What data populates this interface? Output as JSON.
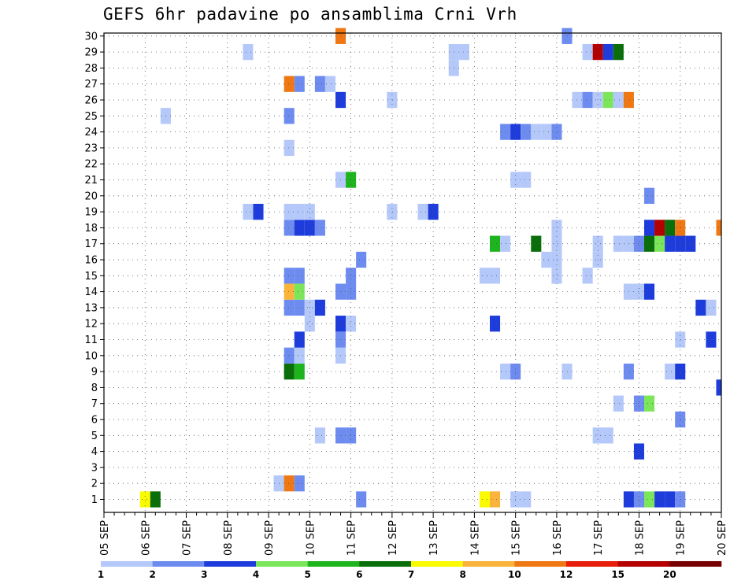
{
  "chart_data": {
    "type": "heatmap",
    "title": "GEFS 6hr padavine po ansamblima Crni Vrh",
    "xlabel": "",
    "ylabel": "",
    "x_tick_labels": [
      "05 SEP",
      "06 SEP",
      "07 SEP",
      "08 SEP",
      "09 SEP",
      "10 SEP",
      "11 SEP",
      "12 SEP",
      "13 SEP",
      "14 SEP",
      "15 SEP",
      "16 SEP",
      "17 SEP",
      "18 SEP",
      "19 SEP",
      "20 SEP"
    ],
    "y_tick_labels": [
      "1",
      "2",
      "3",
      "4",
      "5",
      "6",
      "7",
      "8",
      "9",
      "10",
      "11",
      "12",
      "13",
      "14",
      "15",
      "16",
      "17",
      "18",
      "19",
      "20",
      "21",
      "22",
      "23",
      "24",
      "25",
      "26",
      "27",
      "28",
      "29",
      "30"
    ],
    "x_step_unit": "6hr",
    "steps_per_day": 4,
    "num_steps": 61,
    "num_members": 30,
    "grid": true,
    "colorbar": {
      "position": "bottom",
      "boundaries": [
        "1",
        "2",
        "3",
        "4",
        "5",
        "6",
        "7",
        "8",
        "10",
        "12",
        "15",
        "20"
      ],
      "colors": [
        "#b4c8fa",
        "#6e8cf0",
        "#1e3cdc",
        "#7ce65a",
        "#1eb41e",
        "#0a6e0a",
        "#fafa00",
        "#fab43c",
        "#f07814",
        "#e61e0a",
        "#b40000",
        "#780000"
      ]
    },
    "cells": [
      [
        1,
        4,
        7
      ],
      [
        1,
        5,
        6
      ],
      [
        1,
        54,
        3
      ],
      [
        1,
        53,
        4
      ],
      [
        1,
        40,
        1
      ],
      [
        1,
        41,
        1
      ],
      [
        1,
        37,
        7
      ],
      [
        1,
        38,
        8
      ],
      [
        1,
        25,
        2
      ],
      [
        1,
        52,
        2
      ],
      [
        1,
        51,
        3
      ],
      [
        1,
        55,
        3
      ],
      [
        1,
        56,
        2
      ],
      [
        2,
        17,
        1
      ],
      [
        2,
        18,
        10
      ],
      [
        2,
        19,
        2
      ],
      [
        4,
        52,
        3
      ],
      [
        5,
        21,
        1
      ],
      [
        5,
        23,
        2
      ],
      [
        5,
        24,
        2
      ],
      [
        5,
        48,
        1
      ],
      [
        5,
        49,
        1
      ],
      [
        6,
        56,
        2
      ],
      [
        7,
        50,
        1
      ],
      [
        7,
        52,
        2
      ],
      [
        7,
        53,
        4
      ],
      [
        8,
        60,
        3
      ],
      [
        9,
        18,
        6
      ],
      [
        9,
        19,
        5
      ],
      [
        9,
        39,
        1
      ],
      [
        9,
        40,
        2
      ],
      [
        9,
        45,
        1
      ],
      [
        9,
        51,
        2
      ],
      [
        9,
        55,
        1
      ],
      [
        9,
        56,
        3
      ],
      [
        10,
        18,
        2
      ],
      [
        10,
        19,
        1
      ],
      [
        10,
        23,
        1
      ],
      [
        11,
        19,
        3
      ],
      [
        11,
        23,
        2
      ],
      [
        11,
        56,
        1
      ],
      [
        11,
        59,
        3
      ],
      [
        12,
        20,
        1
      ],
      [
        12,
        23,
        3
      ],
      [
        12,
        24,
        1
      ],
      [
        12,
        38,
        3
      ],
      [
        13,
        18,
        2
      ],
      [
        13,
        19,
        2
      ],
      [
        13,
        20,
        1
      ],
      [
        13,
        21,
        3
      ],
      [
        13,
        58,
        3
      ],
      [
        13,
        59,
        1
      ],
      [
        14,
        18,
        9
      ],
      [
        14,
        19,
        4
      ],
      [
        14,
        23,
        2
      ],
      [
        14,
        24,
        2
      ],
      [
        14,
        51,
        1
      ],
      [
        14,
        52,
        1
      ],
      [
        14,
        53,
        3
      ],
      [
        15,
        18,
        2
      ],
      [
        15,
        19,
        2
      ],
      [
        15,
        24,
        2
      ],
      [
        15,
        37,
        1
      ],
      [
        15,
        38,
        1
      ],
      [
        15,
        44,
        1
      ],
      [
        15,
        47,
        1
      ],
      [
        16,
        25,
        2
      ],
      [
        16,
        43,
        1
      ],
      [
        16,
        44,
        1
      ],
      [
        16,
        48,
        1
      ],
      [
        17,
        38,
        5
      ],
      [
        17,
        39,
        1
      ],
      [
        17,
        42,
        6
      ],
      [
        17,
        44,
        1
      ],
      [
        17,
        48,
        1
      ],
      [
        17,
        50,
        1
      ],
      [
        17,
        51,
        1
      ],
      [
        17,
        52,
        2
      ],
      [
        17,
        53,
        6
      ],
      [
        17,
        54,
        4
      ],
      [
        17,
        55,
        3
      ],
      [
        17,
        56,
        3
      ],
      [
        17,
        57,
        3
      ],
      [
        18,
        44,
        1
      ],
      [
        18,
        18,
        2
      ],
      [
        18,
        19,
        3
      ],
      [
        18,
        20,
        3
      ],
      [
        18,
        21,
        2
      ],
      [
        18,
        53,
        3
      ],
      [
        18,
        54,
        15
      ],
      [
        18,
        55,
        6
      ],
      [
        18,
        56,
        10
      ],
      [
        18,
        60,
        10
      ],
      [
        19,
        14,
        1
      ],
      [
        19,
        15,
        3
      ],
      [
        19,
        18,
        1
      ],
      [
        19,
        19,
        1
      ],
      [
        19,
        20,
        1
      ],
      [
        19,
        28,
        1
      ],
      [
        19,
        31,
        1
      ],
      [
        19,
        32,
        3
      ],
      [
        20,
        53,
        2
      ],
      [
        21,
        23,
        1
      ],
      [
        21,
        24,
        5
      ],
      [
        21,
        40,
        1
      ],
      [
        21,
        41,
        1
      ],
      [
        23,
        18,
        1
      ],
      [
        24,
        39,
        2
      ],
      [
        24,
        40,
        3
      ],
      [
        24,
        41,
        2
      ],
      [
        24,
        42,
        1
      ],
      [
        24,
        43,
        1
      ],
      [
        24,
        44,
        2
      ],
      [
        25,
        6,
        1
      ],
      [
        25,
        18,
        2
      ],
      [
        26,
        23,
        3
      ],
      [
        26,
        28,
        1
      ],
      [
        26,
        46,
        1
      ],
      [
        26,
        47,
        2
      ],
      [
        26,
        48,
        1
      ],
      [
        26,
        49,
        4
      ],
      [
        26,
        50,
        1
      ],
      [
        26,
        51,
        10
      ],
      [
        27,
        18,
        10
      ],
      [
        27,
        19,
        2
      ],
      [
        27,
        21,
        2
      ],
      [
        27,
        22,
        1
      ],
      [
        28,
        34,
        1
      ],
      [
        29,
        14,
        1
      ],
      [
        29,
        34,
        1
      ],
      [
        29,
        35,
        1
      ],
      [
        29,
        47,
        1
      ],
      [
        29,
        48,
        15
      ],
      [
        29,
        49,
        3
      ],
      [
        29,
        50,
        6
      ],
      [
        30,
        23,
        10
      ],
      [
        30,
        45,
        2
      ]
    ]
  }
}
